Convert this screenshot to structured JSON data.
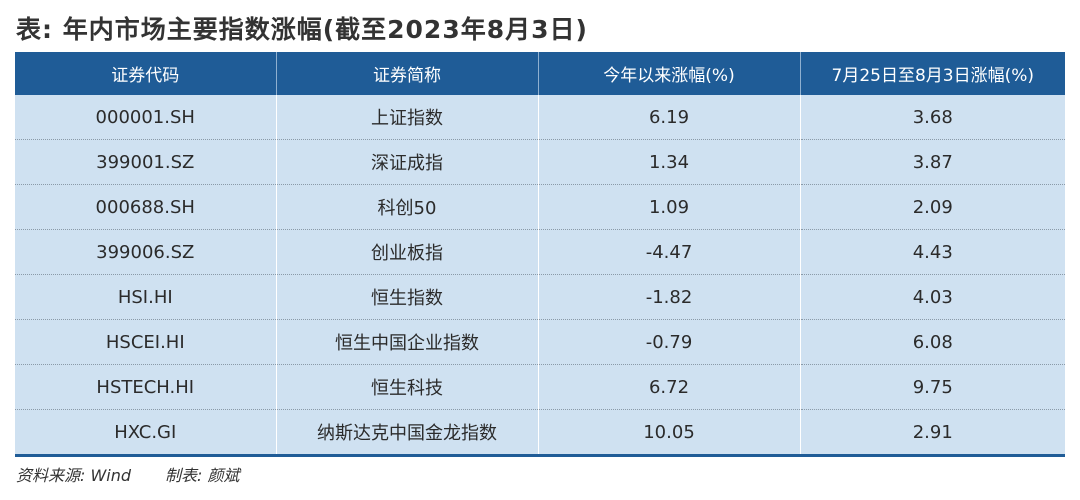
{
  "title": "表: 年内市场主要指数涨幅(截至2023年8月3日)",
  "table": {
    "headers": [
      "证券代码",
      "证券简称",
      "今年以来涨幅(%)",
      "7月25日至8月3日涨幅(%)"
    ],
    "rows": [
      [
        "000001.SH",
        "上证指数",
        "6.19",
        "3.68"
      ],
      [
        "399001.SZ",
        "深证成指",
        "1.34",
        "3.87"
      ],
      [
        "000688.SH",
        "科创50",
        "1.09",
        "2.09"
      ],
      [
        "399006.SZ",
        "创业板指",
        "-4.47",
        "4.43"
      ],
      [
        "HSI.HI",
        "恒生指数",
        "-1.82",
        "4.03"
      ],
      [
        "HSCEI.HI",
        "恒生中国企业指数",
        "-0.79",
        "6.08"
      ],
      [
        "HSTECH.HI",
        "恒生科技",
        "6.72",
        "9.75"
      ],
      [
        "HXC.GI",
        "纳斯达克中国金龙指数",
        "10.05",
        "2.91"
      ]
    ]
  },
  "footer": {
    "source": "资料来源: Wind",
    "author": "制表: 颜斌"
  },
  "colors": {
    "header_bg": "#1f5c97",
    "row_bg": "#cfe1f1",
    "text": "#2b2b2b"
  }
}
